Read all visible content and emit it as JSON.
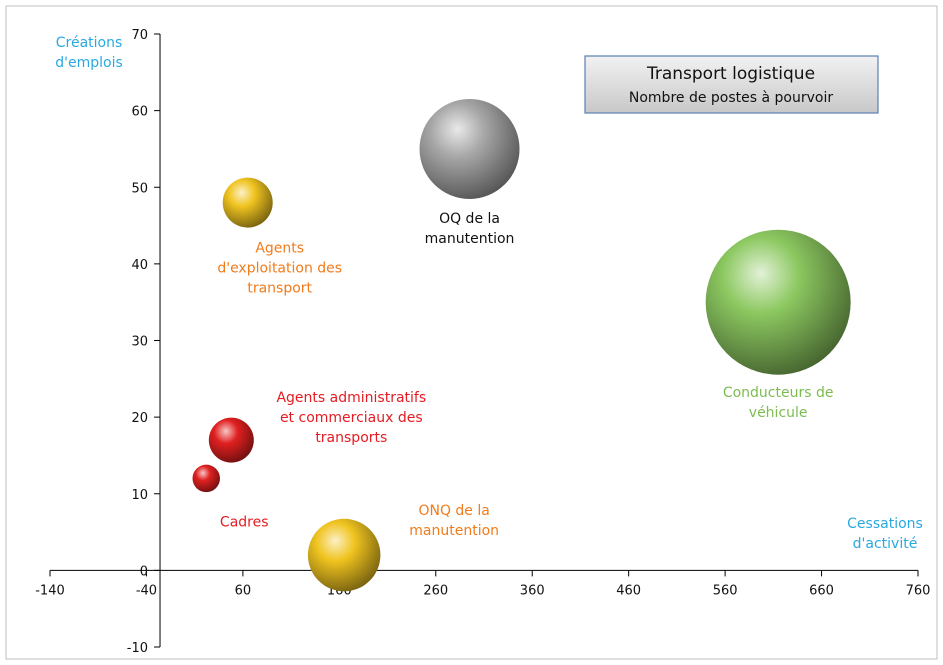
{
  "chart_data": {
    "type": "scatter",
    "variant": "bubble",
    "title": "Transport logistique",
    "subtitle": "Nombre de postes à pourvoir",
    "xlabel": "Cessations\nd'activité",
    "ylabel": "Créations\nd'emplois",
    "xlim": [
      -140,
      760
    ],
    "ylim": [
      -10,
      70
    ],
    "xticks": [
      -140,
      -40,
      60,
      160,
      260,
      360,
      460,
      560,
      660,
      760
    ],
    "yticks": [
      -10,
      0,
      10,
      20,
      30,
      40,
      50,
      60,
      70
    ],
    "grid": false,
    "legend": "none",
    "colors": {
      "orange": "#f0c420",
      "grey": "#a8a8a8",
      "green": "#8cc860",
      "red": "#e02020",
      "axis_title": "#29a9e1",
      "label_orange": "#f07c1c",
      "label_grey": "#111111",
      "label_green": "#7cbc50",
      "label_red": "#e51c23"
    },
    "points": [
      {
        "label": "Agents\nd'exploitation des\ntransport",
        "x": 65,
        "y": 48,
        "size": 1.0,
        "color": "orange",
        "label_color": "label_orange"
      },
      {
        "label": "OQ de la\nmanutention",
        "x": 295,
        "y": 55,
        "size": 2.0,
        "color": "grey",
        "label_color": "label_grey"
      },
      {
        "label": "Conducteurs de\nvéhicule",
        "x": 615,
        "y": 35,
        "size": 2.9,
        "color": "green",
        "label_color": "label_green"
      },
      {
        "label": "Agents administratifs\net commerciaux des\ntransports",
        "x": 48,
        "y": 17,
        "size": 0.9,
        "color": "red",
        "label_color": "label_red"
      },
      {
        "label": "Cadres",
        "x": 22,
        "y": 12,
        "size": 0.55,
        "color": "red",
        "label_color": "label_red"
      },
      {
        "label": "ONQ de la\nmanutention",
        "x": 165,
        "y": 2,
        "size": 1.45,
        "color": "orange",
        "label_color": "label_orange"
      }
    ]
  }
}
